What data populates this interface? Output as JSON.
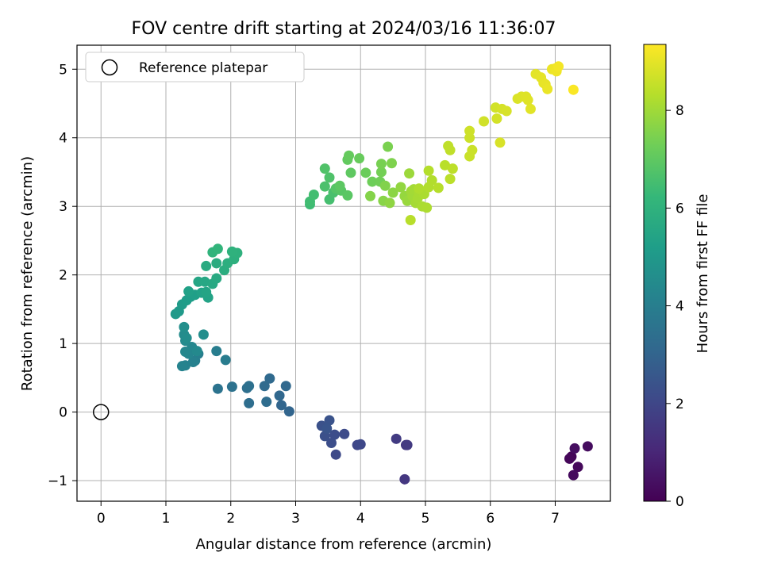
{
  "chart_data": {
    "type": "scatter",
    "title": "FOV centre drift starting at 2024/03/16 11:36:07",
    "xlabel": "Angular distance from reference (arcmin)",
    "ylabel": "Rotation from reference (arcmin)",
    "xlim": [
      -0.37,
      7.85
    ],
    "ylim": [
      -1.3,
      5.35
    ],
    "x_ticks": [
      0,
      1,
      2,
      3,
      4,
      5,
      6,
      7
    ],
    "y_ticks": [
      -1,
      0,
      1,
      2,
      3,
      4,
      5
    ],
    "grid": true,
    "legend": {
      "position": "top-left",
      "entries": [
        "Reference platepar"
      ]
    },
    "reference_point": {
      "label": "Reference platepar",
      "x": 0,
      "y": 0
    },
    "colorbar": {
      "label": "Hours from first FF file",
      "colormap": "viridis",
      "range": [
        0,
        9.35
      ],
      "ticks": [
        0,
        2,
        4,
        6,
        8
      ]
    },
    "colormap_stops": [
      "#440154",
      "#482878",
      "#3e4989",
      "#31688e",
      "#26828e",
      "#1f9e89",
      "#35b779",
      "#6ece58",
      "#b5de2b",
      "#fde725"
    ],
    "series": [
      {
        "points": [
          {
            "x": 7.25,
            "y": -0.65,
            "c": 0.1
          },
          {
            "x": 7.22,
            "y": -0.68,
            "c": 0.15
          },
          {
            "x": 7.35,
            "y": -0.8,
            "c": 0.2
          },
          {
            "x": 7.28,
            "y": -0.92,
            "c": 0.25
          },
          {
            "x": 7.5,
            "y": -0.5,
            "c": 0.3
          },
          {
            "x": 7.3,
            "y": -0.53,
            "c": 0.35
          },
          {
            "x": 4.68,
            "y": -0.98,
            "c": 1.5
          },
          {
            "x": 4.7,
            "y": -0.48,
            "c": 1.55
          },
          {
            "x": 4.72,
            "y": -0.48,
            "c": 1.6
          },
          {
            "x": 4.55,
            "y": -0.39,
            "c": 1.65
          },
          {
            "x": 3.95,
            "y": -0.48,
            "c": 2.0
          },
          {
            "x": 4.0,
            "y": -0.47,
            "c": 2.05
          },
          {
            "x": 3.62,
            "y": -0.62,
            "c": 2.1
          },
          {
            "x": 3.75,
            "y": -0.32,
            "c": 2.15
          },
          {
            "x": 3.6,
            "y": -0.33,
            "c": 2.2
          },
          {
            "x": 3.55,
            "y": -0.45,
            "c": 2.25
          },
          {
            "x": 3.45,
            "y": -0.35,
            "c": 2.3
          },
          {
            "x": 3.4,
            "y": -0.2,
            "c": 2.35
          },
          {
            "x": 3.52,
            "y": -0.12,
            "c": 2.4
          },
          {
            "x": 3.48,
            "y": -0.24,
            "c": 2.45
          },
          {
            "x": 2.9,
            "y": 0.01,
            "c": 3.0
          },
          {
            "x": 2.78,
            "y": 0.1,
            "c": 3.05
          },
          {
            "x": 2.75,
            "y": 0.24,
            "c": 3.1
          },
          {
            "x": 2.85,
            "y": 0.38,
            "c": 3.15
          },
          {
            "x": 2.6,
            "y": 0.49,
            "c": 3.2
          },
          {
            "x": 2.52,
            "y": 0.38,
            "c": 3.25
          },
          {
            "x": 2.55,
            "y": 0.15,
            "c": 3.3
          },
          {
            "x": 2.28,
            "y": 0.13,
            "c": 3.35
          },
          {
            "x": 2.25,
            "y": 0.35,
            "c": 3.4
          },
          {
            "x": 2.28,
            "y": 0.38,
            "c": 3.45
          },
          {
            "x": 2.02,
            "y": 0.37,
            "c": 3.5
          },
          {
            "x": 1.8,
            "y": 0.34,
            "c": 3.55
          },
          {
            "x": 1.92,
            "y": 0.76,
            "c": 3.9
          },
          {
            "x": 1.78,
            "y": 0.89,
            "c": 3.95
          },
          {
            "x": 1.5,
            "y": 0.85,
            "c": 4.0
          },
          {
            "x": 1.45,
            "y": 0.75,
            "c": 4.05
          },
          {
            "x": 1.42,
            "y": 0.73,
            "c": 4.1
          },
          {
            "x": 1.3,
            "y": 0.68,
            "c": 4.15
          },
          {
            "x": 1.25,
            "y": 0.67,
            "c": 4.2
          },
          {
            "x": 1.35,
            "y": 0.85,
            "c": 4.25
          },
          {
            "x": 1.4,
            "y": 0.95,
            "c": 4.3
          },
          {
            "x": 1.3,
            "y": 0.88,
            "c": 4.35
          },
          {
            "x": 1.48,
            "y": 0.89,
            "c": 4.4
          },
          {
            "x": 1.3,
            "y": 1.04,
            "c": 4.45
          },
          {
            "x": 1.28,
            "y": 1.13,
            "c": 4.5
          },
          {
            "x": 1.32,
            "y": 1.08,
            "c": 4.55
          },
          {
            "x": 1.58,
            "y": 1.13,
            "c": 4.6
          },
          {
            "x": 1.28,
            "y": 1.24,
            "c": 4.65
          },
          {
            "x": 1.15,
            "y": 1.43,
            "c": 5.0
          },
          {
            "x": 1.2,
            "y": 1.47,
            "c": 5.05
          },
          {
            "x": 1.25,
            "y": 1.57,
            "c": 5.1
          },
          {
            "x": 1.32,
            "y": 1.63,
            "c": 5.15
          },
          {
            "x": 1.38,
            "y": 1.68,
            "c": 5.2
          },
          {
            "x": 1.45,
            "y": 1.71,
            "c": 5.25
          },
          {
            "x": 1.35,
            "y": 1.76,
            "c": 5.3
          },
          {
            "x": 1.55,
            "y": 1.74,
            "c": 5.35
          },
          {
            "x": 1.65,
            "y": 1.67,
            "c": 5.4
          },
          {
            "x": 1.62,
            "y": 1.75,
            "c": 5.45
          },
          {
            "x": 1.5,
            "y": 1.9,
            "c": 5.5
          },
          {
            "x": 1.6,
            "y": 1.9,
            "c": 5.55
          },
          {
            "x": 1.72,
            "y": 1.87,
            "c": 5.6
          },
          {
            "x": 1.78,
            "y": 1.95,
            "c": 5.65
          },
          {
            "x": 1.62,
            "y": 2.13,
            "c": 5.7
          },
          {
            "x": 1.78,
            "y": 2.17,
            "c": 5.75
          },
          {
            "x": 1.9,
            "y": 2.07,
            "c": 5.8
          },
          {
            "x": 1.95,
            "y": 2.17,
            "c": 5.85
          },
          {
            "x": 2.05,
            "y": 2.23,
            "c": 5.9
          },
          {
            "x": 2.1,
            "y": 2.32,
            "c": 5.95
          },
          {
            "x": 2.02,
            "y": 2.34,
            "c": 6.0
          },
          {
            "x": 1.72,
            "y": 2.33,
            "c": 6.05
          },
          {
            "x": 1.8,
            "y": 2.38,
            "c": 6.1
          },
          {
            "x": 3.22,
            "y": 3.03,
            "c": 6.4
          },
          {
            "x": 3.22,
            "y": 3.07,
            "c": 6.45
          },
          {
            "x": 3.28,
            "y": 3.17,
            "c": 6.5
          },
          {
            "x": 3.52,
            "y": 3.1,
            "c": 6.55
          },
          {
            "x": 3.58,
            "y": 3.2,
            "c": 6.6
          },
          {
            "x": 3.45,
            "y": 3.29,
            "c": 6.65
          },
          {
            "x": 3.52,
            "y": 3.42,
            "c": 6.7
          },
          {
            "x": 3.45,
            "y": 3.55,
            "c": 6.75
          },
          {
            "x": 3.62,
            "y": 3.26,
            "c": 6.8
          },
          {
            "x": 3.7,
            "y": 3.23,
            "c": 6.85
          },
          {
            "x": 3.8,
            "y": 3.16,
            "c": 6.9
          },
          {
            "x": 3.68,
            "y": 3.3,
            "c": 6.95
          },
          {
            "x": 3.85,
            "y": 3.49,
            "c": 7.0
          },
          {
            "x": 3.8,
            "y": 3.68,
            "c": 7.05
          },
          {
            "x": 3.82,
            "y": 3.74,
            "c": 7.1
          },
          {
            "x": 3.98,
            "y": 3.7,
            "c": 7.15
          },
          {
            "x": 4.08,
            "y": 3.49,
            "c": 7.2
          },
          {
            "x": 4.18,
            "y": 3.36,
            "c": 7.25
          },
          {
            "x": 4.3,
            "y": 3.36,
            "c": 7.3
          },
          {
            "x": 4.32,
            "y": 3.5,
            "c": 7.35
          },
          {
            "x": 4.32,
            "y": 3.62,
            "c": 7.4
          },
          {
            "x": 4.42,
            "y": 3.87,
            "c": 7.45
          },
          {
            "x": 4.48,
            "y": 3.63,
            "c": 7.5
          },
          {
            "x": 4.38,
            "y": 3.3,
            "c": 7.55
          },
          {
            "x": 4.15,
            "y": 3.15,
            "c": 7.6
          },
          {
            "x": 4.35,
            "y": 3.08,
            "c": 7.65
          },
          {
            "x": 4.5,
            "y": 3.2,
            "c": 7.7
          },
          {
            "x": 4.45,
            "y": 3.05,
            "c": 7.75
          },
          {
            "x": 4.62,
            "y": 3.28,
            "c": 7.8
          },
          {
            "x": 4.68,
            "y": 3.15,
            "c": 7.85
          },
          {
            "x": 4.72,
            "y": 3.08,
            "c": 7.9
          },
          {
            "x": 4.75,
            "y": 3.48,
            "c": 7.95
          },
          {
            "x": 4.78,
            "y": 3.22,
            "c": 8.0
          },
          {
            "x": 4.8,
            "y": 3.15,
            "c": 8.02
          },
          {
            "x": 4.82,
            "y": 3.25,
            "c": 8.05
          },
          {
            "x": 4.85,
            "y": 3.05,
            "c": 8.07
          },
          {
            "x": 4.88,
            "y": 3.12,
            "c": 8.1
          },
          {
            "x": 4.9,
            "y": 3.2,
            "c": 8.12
          },
          {
            "x": 4.95,
            "y": 3.0,
            "c": 8.15
          },
          {
            "x": 4.98,
            "y": 3.18,
            "c": 8.17
          },
          {
            "x": 5.02,
            "y": 2.98,
            "c": 8.2
          },
          {
            "x": 4.9,
            "y": 3.26,
            "c": 8.22
          },
          {
            "x": 5.05,
            "y": 3.28,
            "c": 8.25
          },
          {
            "x": 5.1,
            "y": 3.38,
            "c": 8.27
          },
          {
            "x": 5.05,
            "y": 3.52,
            "c": 8.3
          },
          {
            "x": 5.2,
            "y": 3.27,
            "c": 8.32
          },
          {
            "x": 4.77,
            "y": 2.8,
            "c": 8.35
          },
          {
            "x": 5.3,
            "y": 3.6,
            "c": 8.37
          },
          {
            "x": 5.38,
            "y": 3.4,
            "c": 8.4
          },
          {
            "x": 5.42,
            "y": 3.55,
            "c": 8.42
          },
          {
            "x": 5.35,
            "y": 3.88,
            "c": 8.45
          },
          {
            "x": 5.38,
            "y": 3.82,
            "c": 8.47
          },
          {
            "x": 5.68,
            "y": 3.73,
            "c": 8.6
          },
          {
            "x": 5.72,
            "y": 3.82,
            "c": 8.62
          },
          {
            "x": 5.68,
            "y": 4.0,
            "c": 8.65
          },
          {
            "x": 5.68,
            "y": 4.1,
            "c": 8.67
          },
          {
            "x": 5.9,
            "y": 4.24,
            "c": 8.7
          },
          {
            "x": 6.08,
            "y": 4.44,
            "c": 8.72
          },
          {
            "x": 6.1,
            "y": 4.28,
            "c": 8.75
          },
          {
            "x": 6.18,
            "y": 4.42,
            "c": 8.77
          },
          {
            "x": 6.25,
            "y": 4.39,
            "c": 8.8
          },
          {
            "x": 6.15,
            "y": 3.93,
            "c": 8.82
          },
          {
            "x": 6.42,
            "y": 4.57,
            "c": 8.85
          },
          {
            "x": 6.48,
            "y": 4.6,
            "c": 8.87
          },
          {
            "x": 6.55,
            "y": 4.6,
            "c": 8.9
          },
          {
            "x": 6.58,
            "y": 4.55,
            "c": 8.92
          },
          {
            "x": 6.62,
            "y": 4.42,
            "c": 8.95
          },
          {
            "x": 6.7,
            "y": 4.93,
            "c": 8.97
          },
          {
            "x": 6.78,
            "y": 4.88,
            "c": 9.0
          },
          {
            "x": 6.82,
            "y": 4.8,
            "c": 9.02
          },
          {
            "x": 6.85,
            "y": 4.78,
            "c": 9.05
          },
          {
            "x": 6.88,
            "y": 4.71,
            "c": 9.07
          },
          {
            "x": 6.95,
            "y": 5.0,
            "c": 9.1
          },
          {
            "x": 7.0,
            "y": 5.01,
            "c": 9.12
          },
          {
            "x": 7.02,
            "y": 4.97,
            "c": 9.15
          },
          {
            "x": 7.05,
            "y": 5.04,
            "c": 9.2
          },
          {
            "x": 7.28,
            "y": 4.7,
            "c": 9.3
          }
        ]
      }
    ]
  }
}
